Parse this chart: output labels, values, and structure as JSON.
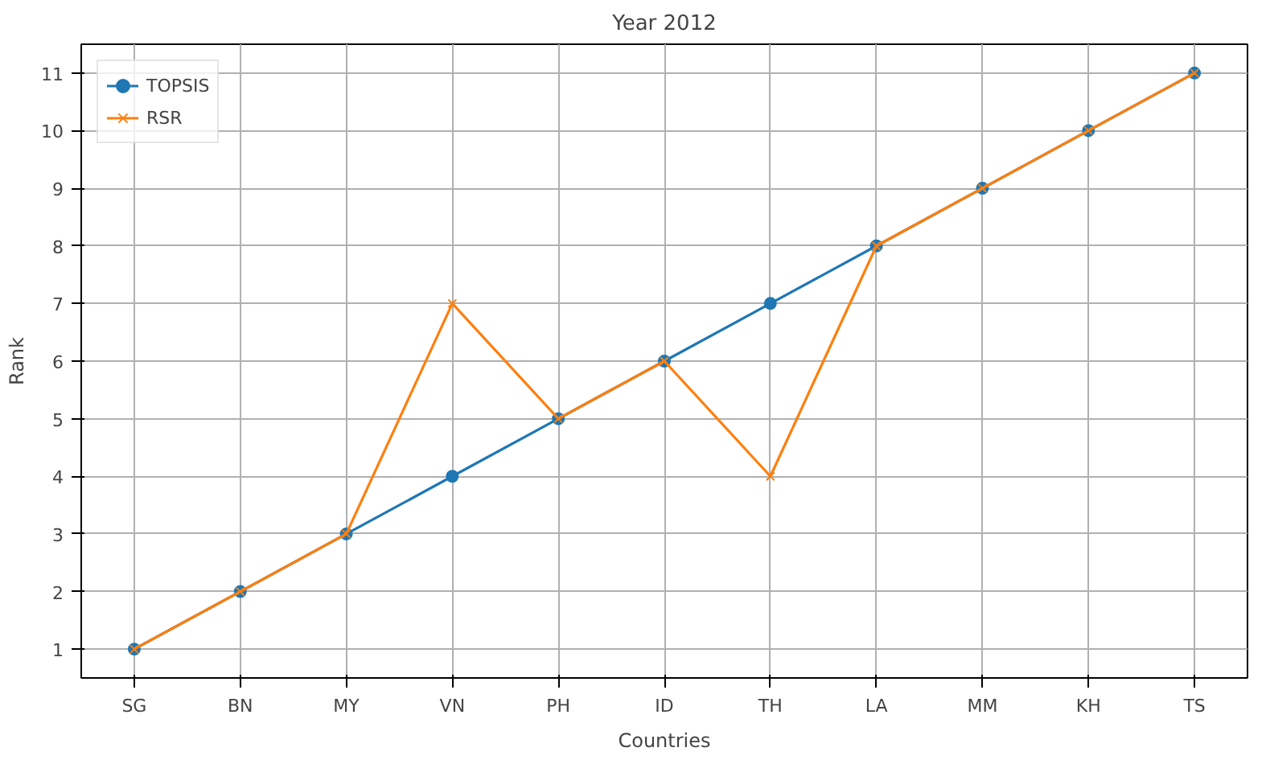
{
  "chart_data": {
    "type": "line",
    "title": "Year 2012",
    "xlabel": "Countries",
    "ylabel": "Rank",
    "categories": [
      "SG",
      "BN",
      "MY",
      "VN",
      "PH",
      "ID",
      "TH",
      "LA",
      "MM",
      "KH",
      "TS"
    ],
    "series": [
      {
        "name": "TOPSIS",
        "color": "#1f77b4",
        "marker": "circle",
        "values": [
          1,
          2,
          3,
          4,
          5,
          6,
          7,
          8,
          9,
          10,
          11
        ]
      },
      {
        "name": "RSR",
        "color": "#ff7f0e",
        "marker": "cross",
        "values": [
          1,
          2,
          3,
          7,
          5,
          6,
          4,
          8,
          9,
          10,
          11
        ]
      }
    ],
    "ylim": [
      0.5,
      11.5
    ],
    "yticks": [
      1,
      2,
      3,
      4,
      5,
      6,
      7,
      8,
      9,
      10,
      11
    ],
    "grid": true,
    "legend": "top left",
    "line_style": "solid"
  }
}
